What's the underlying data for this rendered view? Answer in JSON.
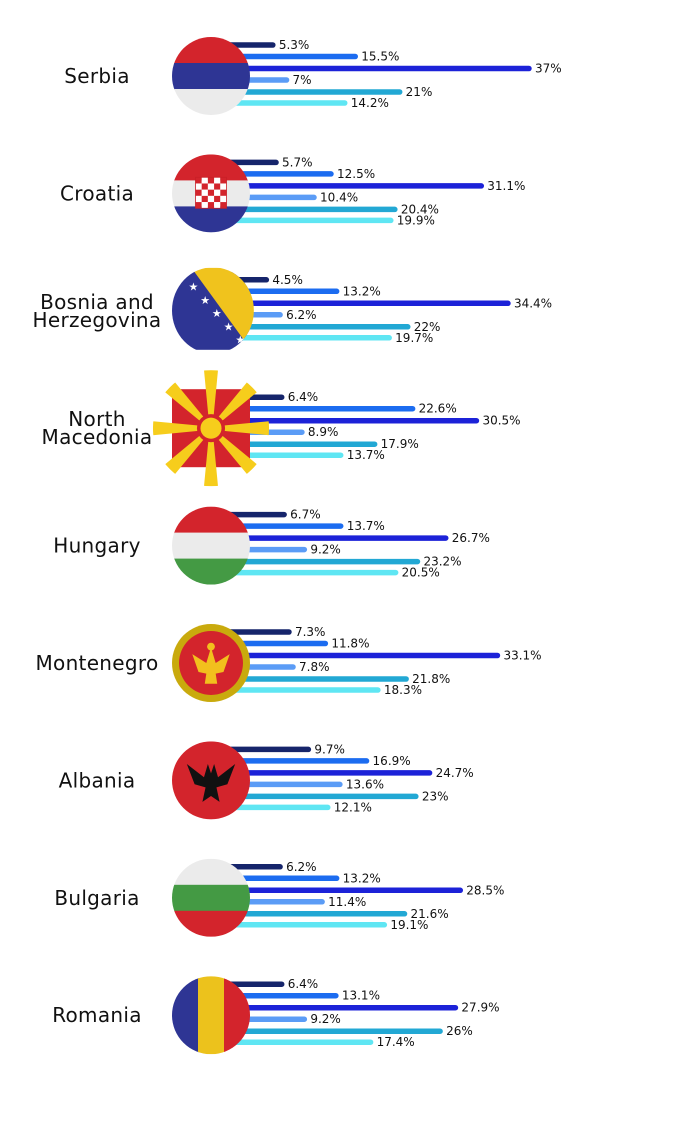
{
  "chart_data": {
    "type": "bar",
    "series_colors": [
      "#16256b",
      "#1c6cf0",
      "#1c22d8",
      "#5b9cf6",
      "#22a8d4",
      "#5fe6f3"
    ],
    "value_suffix": "%",
    "countries": [
      {
        "name": "Serbia",
        "values": [
          5.3,
          15.5,
          37,
          7,
          21,
          14.2
        ],
        "labels": [
          "5.3%",
          "15.5%",
          "37%",
          "7%",
          "21%",
          "14.2%"
        ],
        "flag": "serbia-flag-icon"
      },
      {
        "name": "Croatia",
        "values": [
          5.7,
          12.5,
          31.1,
          10.4,
          20.4,
          19.9
        ],
        "labels": [
          "5.7%",
          "12.5%",
          "31.1%",
          "10.4%",
          "20.4%",
          "19.9%"
        ],
        "flag": "croatia-flag-icon"
      },
      {
        "name": "Bosnia and Herzegovina",
        "lines": [
          "Bosnia and",
          "Herzegovina"
        ],
        "values": [
          4.5,
          13.2,
          34.4,
          6.2,
          22,
          19.7
        ],
        "labels": [
          "4.5%",
          "13.2%",
          "34.4%",
          "6.2%",
          "22%",
          "19.7%"
        ],
        "flag": "bosnia-flag-icon"
      },
      {
        "name": "North Macedonia",
        "lines": [
          "North",
          "Macedonia"
        ],
        "values": [
          6.4,
          22.6,
          30.5,
          8.9,
          17.9,
          13.7
        ],
        "labels": [
          "6.4%",
          "22.6%",
          "30.5%",
          "8.9%",
          "17.9%",
          "13.7%"
        ],
        "flag": "north-macedonia-flag-icon"
      },
      {
        "name": "Hungary",
        "values": [
          6.7,
          13.7,
          26.7,
          9.2,
          23.2,
          20.5
        ],
        "labels": [
          "6.7%",
          "13.7%",
          "26.7%",
          "9.2%",
          "23.2%",
          "20.5%"
        ],
        "flag": "hungary-flag-icon"
      },
      {
        "name": "Montenegro",
        "values": [
          7.3,
          11.8,
          33.1,
          7.8,
          21.8,
          18.3
        ],
        "labels": [
          "7.3%",
          "11.8%",
          "33.1%",
          "7.8%",
          "21.8%",
          "18.3%"
        ],
        "flag": "montenegro-flag-icon"
      },
      {
        "name": "Albania",
        "values": [
          9.7,
          16.9,
          24.7,
          13.6,
          23,
          12.1
        ],
        "labels": [
          "9.7%",
          "16.9%",
          "24.7%",
          "13.6%",
          "23%",
          "12.1%"
        ],
        "flag": "albania-flag-icon"
      },
      {
        "name": "Bulgaria",
        "values": [
          6.2,
          13.2,
          28.5,
          11.4,
          21.6,
          19.1
        ],
        "labels": [
          "6.2%",
          "13.2%",
          "28.5%",
          "11.4%",
          "21.6%",
          "19.1%"
        ],
        "flag": "bulgaria-flag-icon"
      },
      {
        "name": "Romania",
        "values": [
          6.4,
          13.1,
          27.9,
          9.2,
          26,
          17.4
        ],
        "labels": [
          "6.4%",
          "13.1%",
          "27.9%",
          "9.2%",
          "26%",
          "17.4%"
        ],
        "flag": "romania-flag-icon"
      }
    ]
  }
}
